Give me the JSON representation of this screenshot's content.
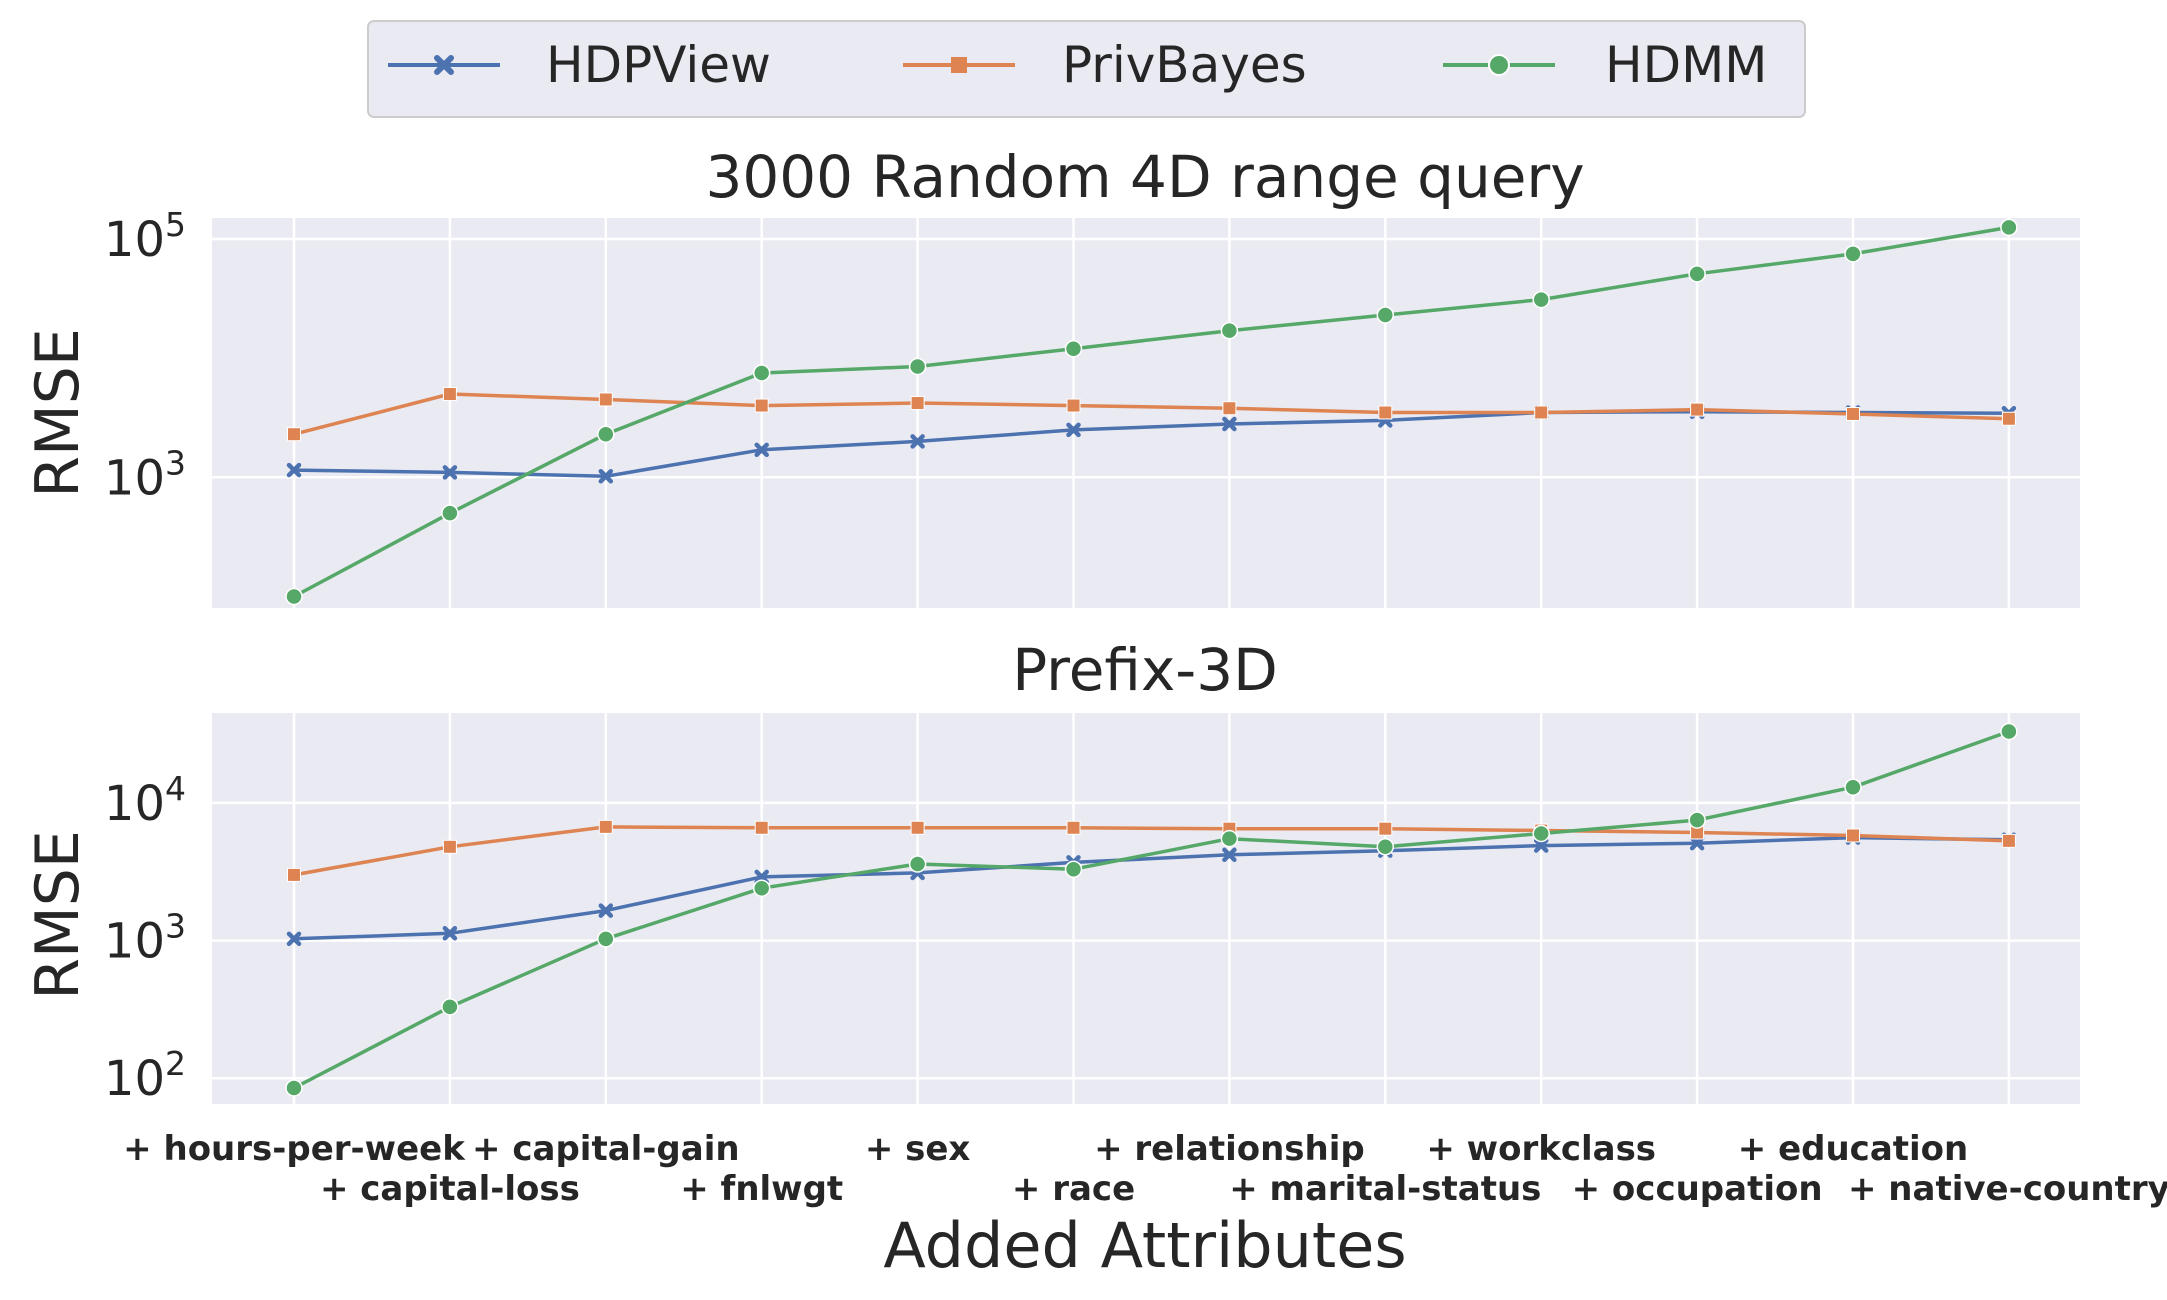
{
  "legend": {
    "entries": [
      {
        "name": "HDPView",
        "color": "#4c72b0",
        "marker": "x"
      },
      {
        "name": "PrivBayes",
        "color": "#dd8452",
        "marker": "square"
      },
      {
        "name": "HDMM",
        "color": "#55a868",
        "marker": "circle"
      }
    ]
  },
  "categories": [
    "+ hours-per-week",
    "+ capital-loss",
    "+ capital-gain",
    "+ fnlwgt",
    "+ sex",
    "+ race",
    "+ relationship",
    "+ marital-status",
    "+ workclass",
    "+ occupation",
    "+ education",
    "+ native-country"
  ],
  "xlabel": "Added Attributes",
  "chart_data": [
    {
      "type": "line",
      "title": "3000 Random 4D range query",
      "ylabel": "RMSE",
      "yscale": "log",
      "ylim": [
        80,
        150000
      ],
      "yticks": [
        {
          "value": 1000,
          "base": "10",
          "exp": "3"
        },
        {
          "value": 100000,
          "base": "10",
          "exp": "5"
        }
      ],
      "categories": [
        "+ hours-per-week",
        "+ capital-loss",
        "+ capital-gain",
        "+ fnlwgt",
        "+ sex",
        "+ race",
        "+ relationship",
        "+ marital-status",
        "+ workclass",
        "+ occupation",
        "+ education",
        "+ native-country"
      ],
      "series": [
        {
          "name": "HDPView",
          "color": "#4c72b0",
          "marker": "x",
          "values": [
            1150,
            1100,
            1020,
            1700,
            2000,
            2500,
            2800,
            3000,
            3500,
            3550,
            3500,
            3450
          ]
        },
        {
          "name": "PrivBayes",
          "color": "#dd8452",
          "marker": "square",
          "values": [
            2300,
            5000,
            4500,
            4000,
            4200,
            4000,
            3800,
            3500,
            3500,
            3700,
            3400,
            3100
          ]
        },
        {
          "name": "HDMM",
          "color": "#55a868",
          "marker": "circle",
          "values": [
            100,
            500,
            2300,
            7500,
            8500,
            12000,
            17000,
            23000,
            31000,
            51000,
            75000,
            125000
          ]
        }
      ]
    },
    {
      "type": "line",
      "title": "Prefix-3D",
      "ylabel": "RMSE",
      "yscale": "log",
      "ylim": [
        65,
        45000
      ],
      "yticks": [
        {
          "value": 100,
          "base": "10",
          "exp": "2"
        },
        {
          "value": 1000,
          "base": "10",
          "exp": "3"
        },
        {
          "value": 10000,
          "base": "10",
          "exp": "4"
        }
      ],
      "categories": [
        "+ hours-per-week",
        "+ capital-loss",
        "+ capital-gain",
        "+ fnlwgt",
        "+ sex",
        "+ race",
        "+ relationship",
        "+ marital-status",
        "+ workclass",
        "+ occupation",
        "+ education",
        "+ native-country"
      ],
      "series": [
        {
          "name": "HDPView",
          "color": "#4c72b0",
          "marker": "x",
          "values": [
            1030,
            1130,
            1650,
            2900,
            3100,
            3700,
            4200,
            4500,
            4900,
            5100,
            5600,
            5400
          ]
        },
        {
          "name": "PrivBayes",
          "color": "#dd8452",
          "marker": "square",
          "values": [
            3000,
            4800,
            6700,
            6600,
            6600,
            6600,
            6500,
            6500,
            6300,
            6100,
            5800,
            5300
          ]
        },
        {
          "name": "HDMM",
          "color": "#55a868",
          "marker": "circle",
          "values": [
            85,
            330,
            1030,
            2400,
            3600,
            3300,
            5500,
            4800,
            6000,
            7500,
            13000,
            33000
          ]
        }
      ]
    }
  ]
}
